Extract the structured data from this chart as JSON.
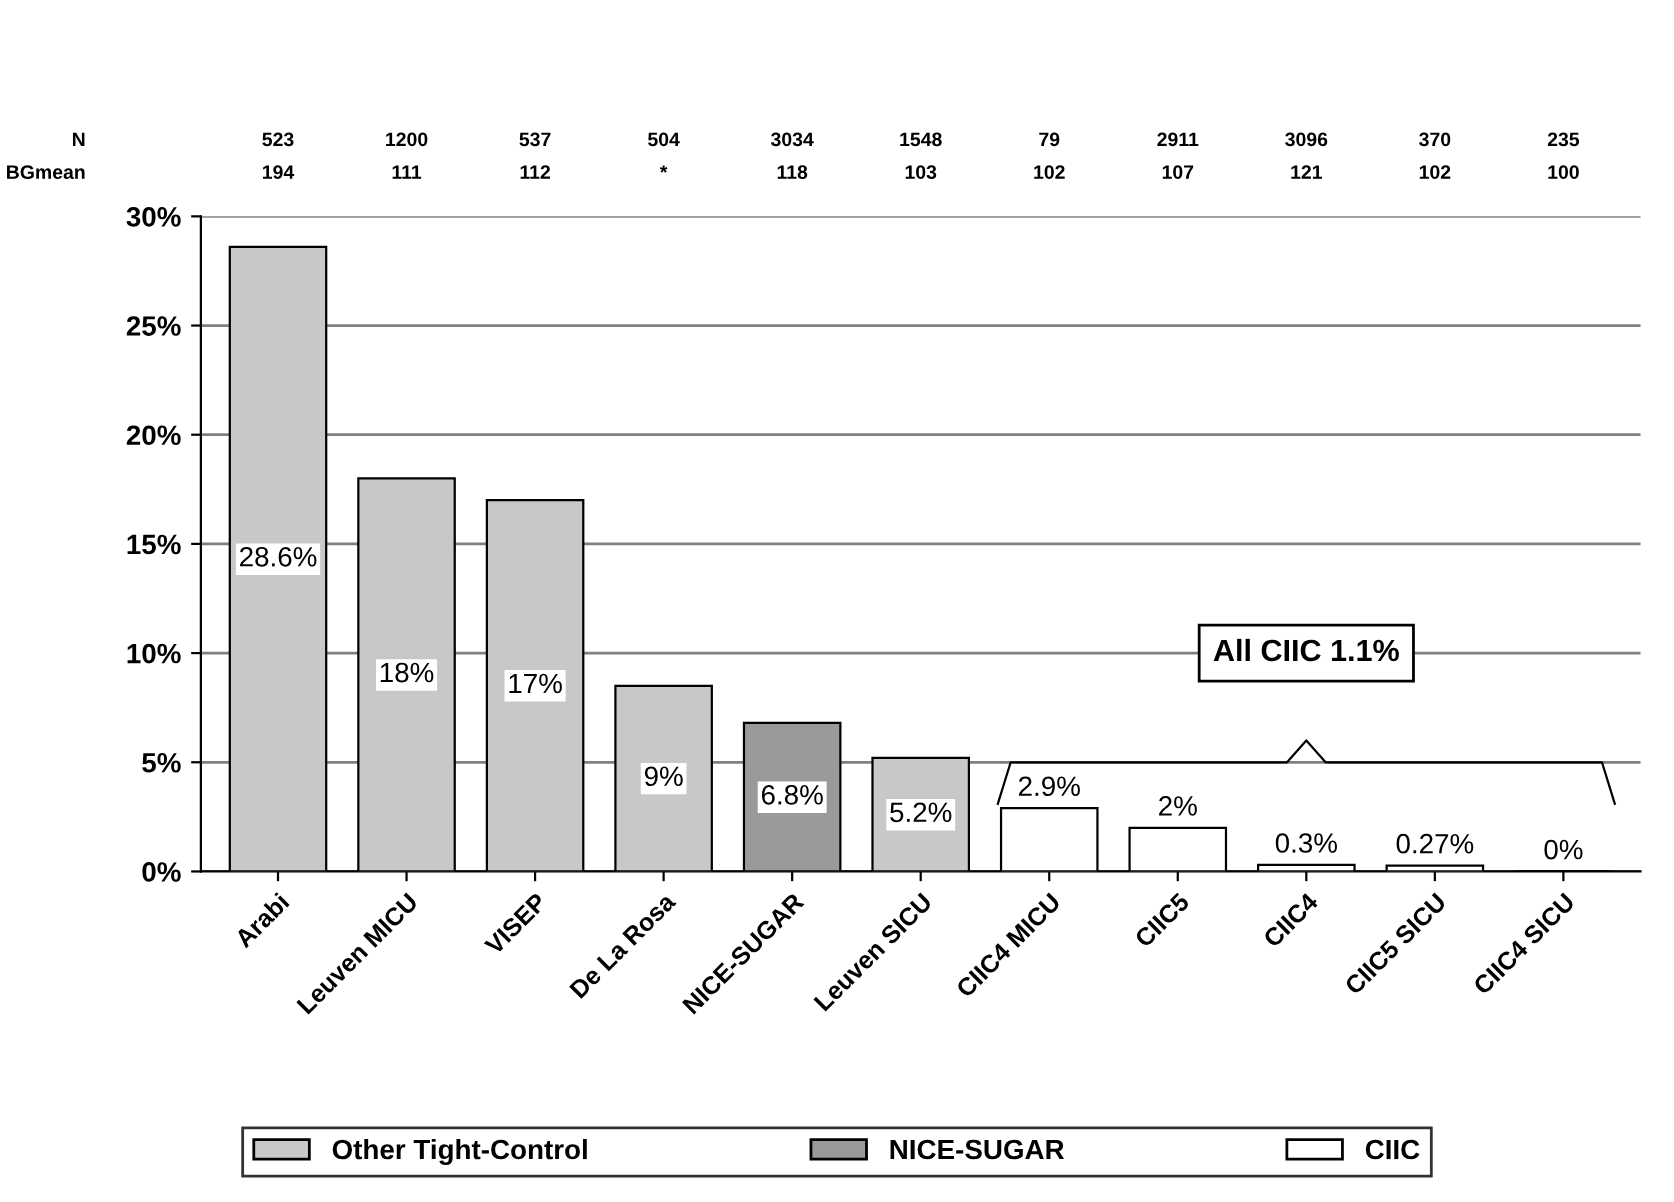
{
  "chart_data": {
    "type": "bar",
    "categories": [
      "Arabi",
      "Leuven MICU",
      "VISEP",
      "De La Rosa",
      "NICE-SUGAR",
      "Leuven SICU",
      "CIIC4 MICU",
      "CIIC5",
      "CIIC4",
      "CIIC5 SICU",
      "CIIC4 SICU"
    ],
    "series": [
      {
        "name": "Other Tight-Control",
        "color": "#c8c8c8",
        "values": [
          28.6,
          18,
          17,
          8.5,
          null,
          5.2,
          null,
          null,
          null,
          null,
          null
        ],
        "value_labels": [
          "28.6%",
          "18%",
          "17%",
          "9%",
          null,
          "5.2%",
          null,
          null,
          null,
          null,
          null
        ]
      },
      {
        "name": "NICE-SUGAR",
        "color": "#9a9a9a",
        "values": [
          null,
          null,
          null,
          null,
          6.8,
          null,
          null,
          null,
          null,
          null,
          null
        ],
        "value_labels": [
          null,
          null,
          null,
          null,
          "6.8%",
          null,
          null,
          null,
          null,
          null,
          null
        ]
      },
      {
        "name": "CIIC",
        "color": "#ffffff",
        "values": [
          null,
          null,
          null,
          null,
          null,
          null,
          2.9,
          2,
          0.3,
          0.27,
          0
        ],
        "value_labels": [
          null,
          null,
          null,
          null,
          null,
          null,
          "2.9%",
          "2%",
          "0.3%",
          "0.27%",
          "0%"
        ]
      }
    ],
    "ylim": [
      0,
      30
    ],
    "yticks": [
      {
        "value": 0,
        "label": "0%"
      },
      {
        "value": 5,
        "label": "5%"
      },
      {
        "value": 10,
        "label": "10%"
      },
      {
        "value": 15,
        "label": "15%"
      },
      {
        "value": 20,
        "label": "20%"
      },
      {
        "value": 25,
        "label": "25%"
      },
      {
        "value": 30,
        "label": "30%"
      }
    ],
    "grid": "y",
    "legend": "bottom",
    "annotations": [
      "N",
      "BGmean",
      "523",
      "1200",
      "537",
      "504",
      "3034",
      "1548",
      "79",
      "2911",
      "3096",
      "370",
      "235",
      "194",
      "111",
      "112",
      "*",
      "118",
      "103",
      "102",
      "107",
      "121",
      "102",
      "100",
      "All CIIC 1.1%"
    ]
  }
}
